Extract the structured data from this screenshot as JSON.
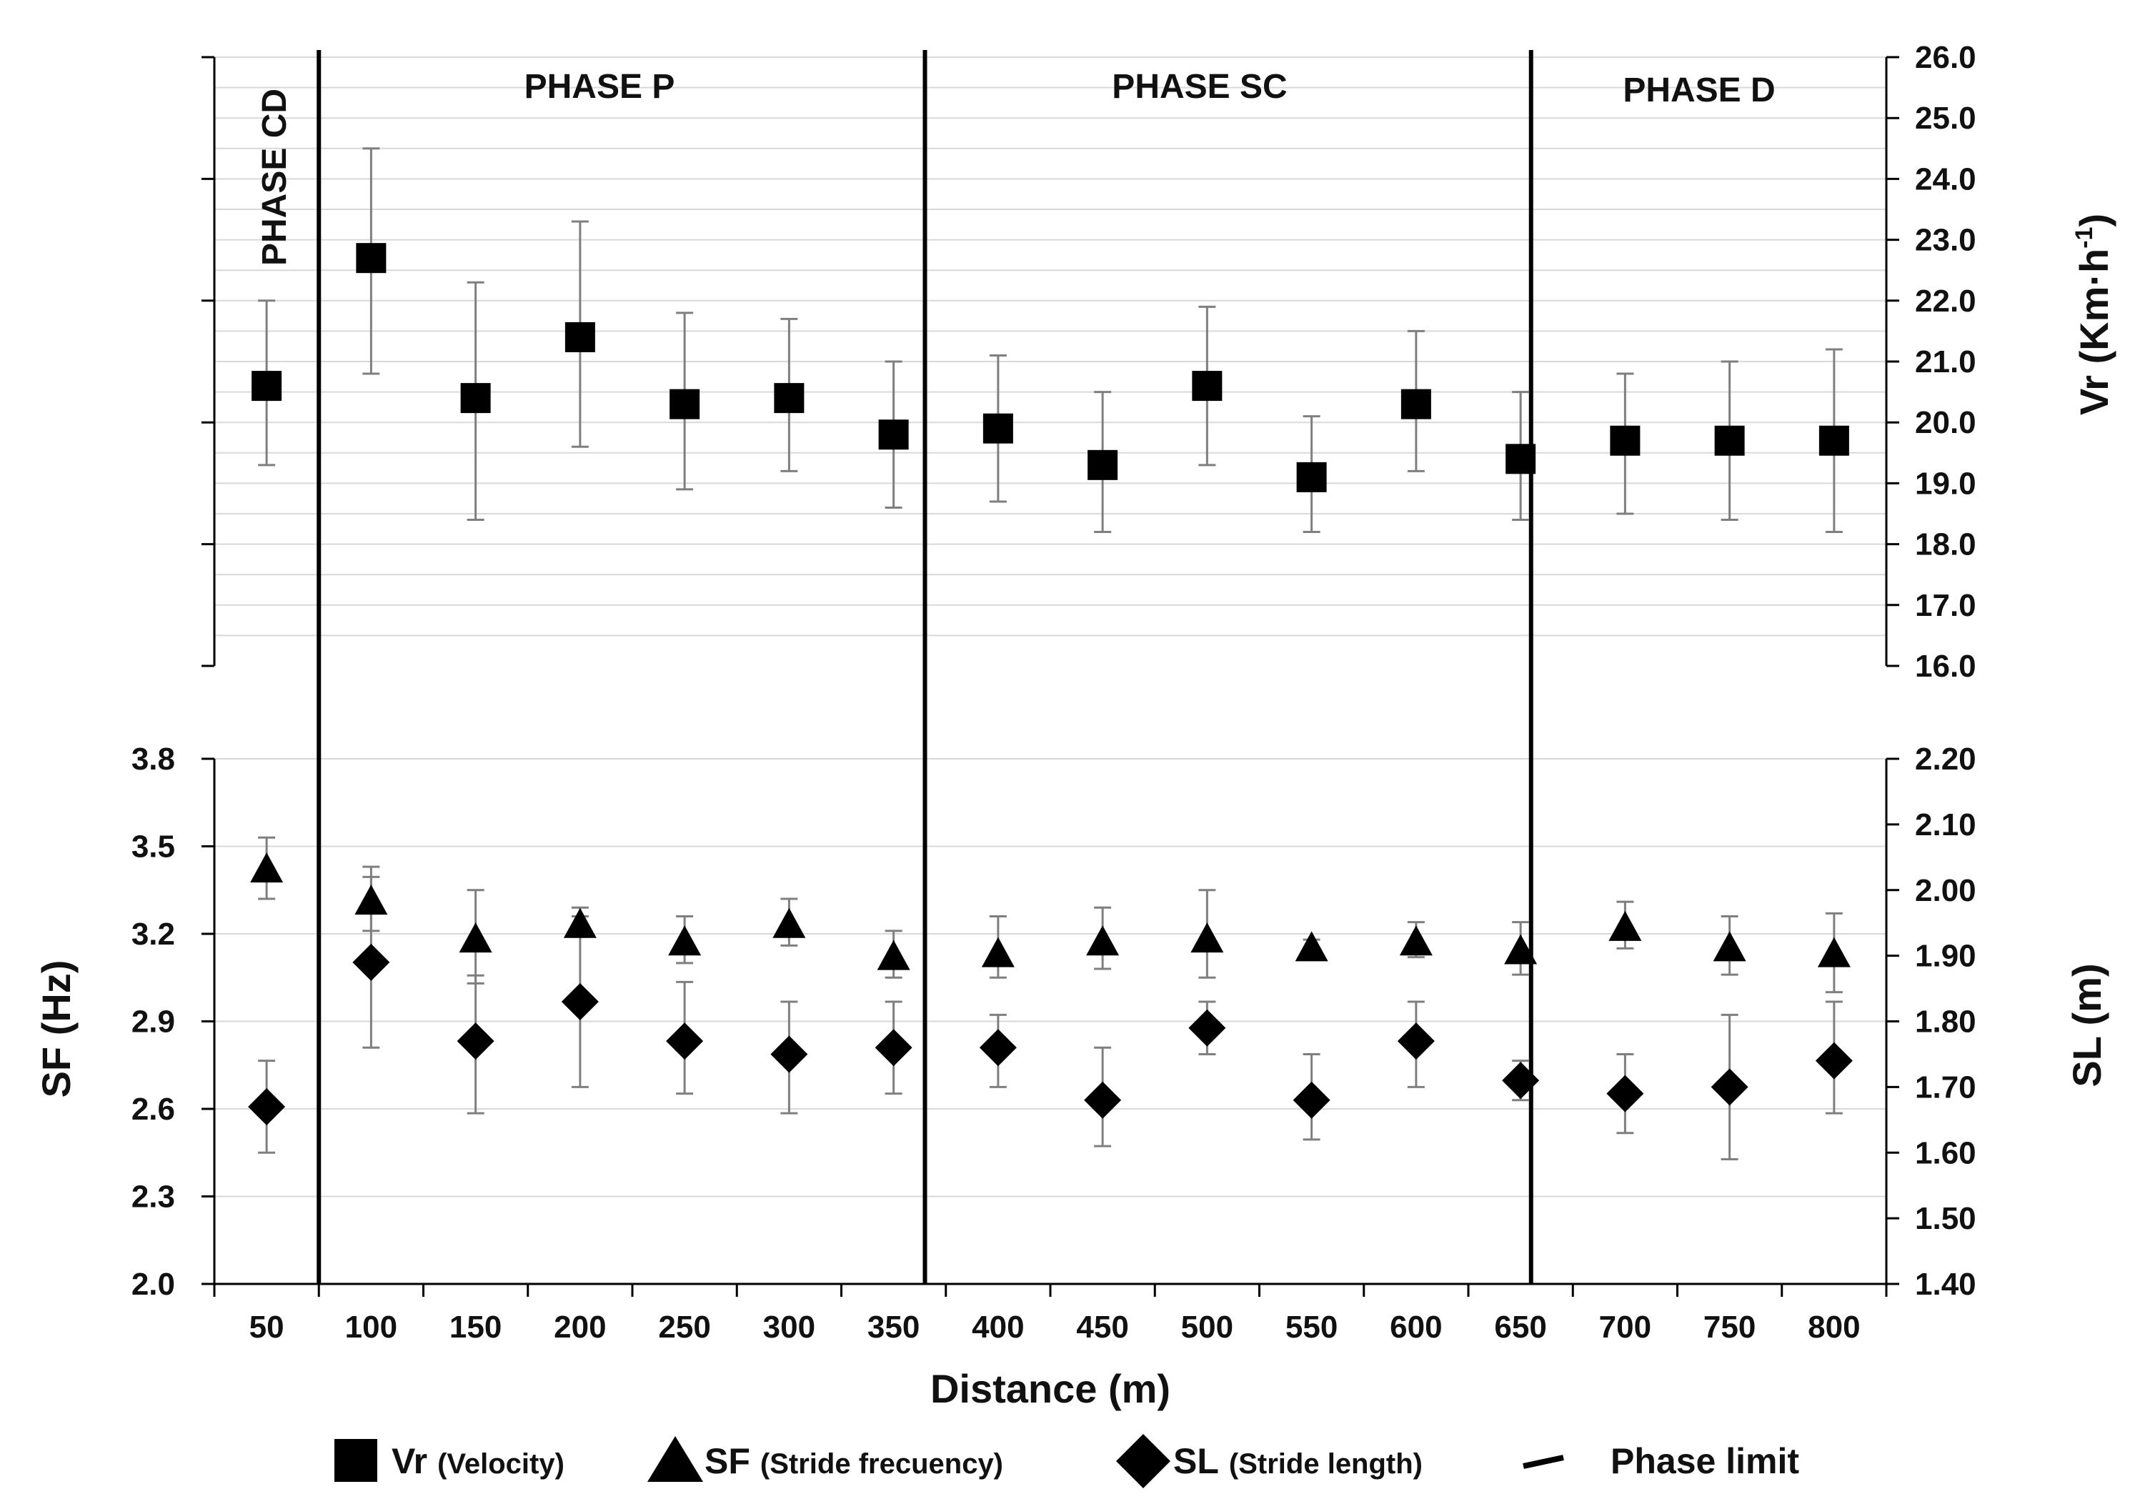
{
  "chart_data": [
    {
      "type": "scatter",
      "panel": "top",
      "series": [
        {
          "name": "Vr",
          "marker": "square",
          "x": [
            50,
            100,
            150,
            200,
            250,
            300,
            350,
            400,
            450,
            500,
            550,
            600,
            650,
            700,
            750,
            800
          ],
          "values": [
            20.6,
            22.7,
            20.4,
            21.4,
            20.3,
            20.4,
            19.8,
            19.9,
            19.3,
            20.6,
            19.1,
            20.3,
            19.4,
            19.7,
            19.7,
            19.7
          ],
          "err_low": [
            19.3,
            20.8,
            18.4,
            19.6,
            18.9,
            19.2,
            18.6,
            18.7,
            18.2,
            19.3,
            18.2,
            19.2,
            18.4,
            18.5,
            18.4,
            18.2
          ],
          "err_high": [
            22.0,
            24.5,
            22.3,
            23.3,
            21.8,
            21.7,
            21.0,
            21.1,
            20.5,
            21.9,
            20.1,
            21.5,
            20.5,
            20.8,
            21.0,
            21.2
          ]
        }
      ],
      "y_right": {
        "label_main": "Vr (Km",
        "label_dot": "·",
        "label_h": "h",
        "label_sup": "-1",
        "label_close": ")",
        "range": [
          16.0,
          26.0
        ],
        "ticks": [
          "16.0",
          "17.0",
          "18.0",
          "19.0",
          "20.0",
          "21.0",
          "22.0",
          "23.0",
          "24.0",
          "25.0",
          "26.0"
        ]
      },
      "phases": [
        {
          "label": "PHASE CD",
          "orientation": "vertical"
        },
        {
          "label": "PHASE P",
          "orientation": "horizontal"
        },
        {
          "label": "PHASE SC",
          "orientation": "horizontal"
        },
        {
          "label": "PHASE D",
          "orientation": "horizontal"
        }
      ],
      "phase_limits_x": [
        75,
        365,
        655
      ]
    },
    {
      "type": "scatter",
      "panel": "bottom",
      "series": [
        {
          "name": "SF",
          "marker": "triangle",
          "axis": "left",
          "x": [
            50,
            100,
            150,
            200,
            250,
            300,
            350,
            400,
            450,
            500,
            550,
            600,
            650,
            700,
            750,
            800
          ],
          "values": [
            3.42,
            3.31,
            3.18,
            3.23,
            3.17,
            3.23,
            3.12,
            3.13,
            3.17,
            3.18,
            3.15,
            3.17,
            3.14,
            3.22,
            3.15,
            3.13
          ],
          "err_low": [
            3.32,
            3.21,
            3.03,
            3.19,
            3.1,
            3.16,
            3.05,
            3.05,
            3.08,
            3.05,
            3.13,
            3.12,
            3.06,
            3.15,
            3.06,
            3.0
          ],
          "err_high": [
            3.53,
            3.43,
            3.35,
            3.29,
            3.26,
            3.32,
            3.21,
            3.26,
            3.29,
            3.35,
            3.18,
            3.24,
            3.24,
            3.31,
            3.26,
            3.27
          ]
        },
        {
          "name": "SL",
          "marker": "diamond",
          "axis": "right",
          "x": [
            50,
            100,
            150,
            200,
            250,
            300,
            350,
            400,
            450,
            500,
            550,
            600,
            650,
            700,
            750,
            800
          ],
          "values": [
            1.67,
            1.89,
            1.77,
            1.83,
            1.77,
            1.75,
            1.76,
            1.76,
            1.68,
            1.79,
            1.68,
            1.77,
            1.71,
            1.69,
            1.7,
            1.74
          ],
          "err_low": [
            1.6,
            1.76,
            1.66,
            1.7,
            1.69,
            1.66,
            1.69,
            1.7,
            1.61,
            1.75,
            1.62,
            1.7,
            1.68,
            1.63,
            1.59,
            1.66
          ],
          "err_high": [
            1.74,
            2.02,
            1.87,
            1.96,
            1.86,
            1.83,
            1.83,
            1.81,
            1.76,
            1.83,
            1.75,
            1.83,
            1.74,
            1.75,
            1.81,
            1.83
          ]
        }
      ],
      "y_left": {
        "label": "SF  (Hz)",
        "range": [
          2.0,
          3.8
        ],
        "ticks": [
          "2.0",
          "2.3",
          "2.6",
          "2.9",
          "3.2",
          "3.5",
          "3.8"
        ]
      },
      "y_right": {
        "label": "SL (m)",
        "range": [
          1.4,
          2.2
        ],
        "ticks": [
          "1.40",
          "1.50",
          "1.60",
          "1.70",
          "1.80",
          "1.90",
          "2.00",
          "2.10",
          "2.20"
        ]
      },
      "x_axis": {
        "label": "Distance (m)",
        "ticks": [
          "50",
          "100",
          "150",
          "200",
          "250",
          "300",
          "350",
          "400",
          "450",
          "500",
          "550",
          "600",
          "650",
          "700",
          "750",
          "800"
        ]
      }
    }
  ],
  "legend": [
    {
      "marker": "square",
      "main": "Vr",
      "detail": "(Velocity)"
    },
    {
      "marker": "triangle",
      "main": "SF",
      "detail": "(Stride frecuency)"
    },
    {
      "marker": "diamond",
      "main": "SL",
      "detail": "(Stride length)"
    },
    {
      "marker": "line",
      "main": "Phase limit",
      "detail": ""
    }
  ],
  "colors": {
    "marker": "#000000",
    "grid": "#d9d9d9",
    "errorbar": "#7f7f7f",
    "axis": "#000000"
  }
}
